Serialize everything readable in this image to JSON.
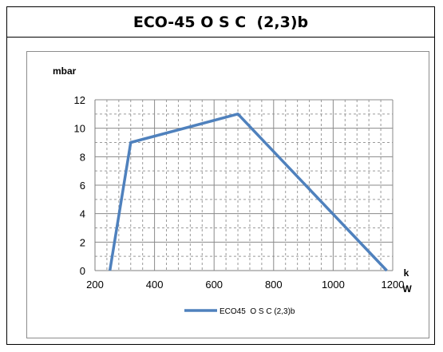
{
  "chart_data": {
    "type": "line",
    "title": "ECO-45 O S C  (2,3)b",
    "ylabel": "mbar",
    "xlabel_lines": [
      "k",
      "W"
    ],
    "xlim": [
      200,
      1200
    ],
    "ylim": [
      0,
      12
    ],
    "x_ticks": [
      200,
      400,
      600,
      800,
      1000,
      1200
    ],
    "y_ticks": [
      0,
      2,
      4,
      6,
      8,
      10,
      12
    ],
    "x_tick_labels": [
      "200",
      "400",
      "600",
      "800",
      "1000",
      "1200"
    ],
    "y_tick_labels": [
      "0",
      "2",
      "4",
      "6",
      "8",
      "10",
      "12"
    ],
    "grid": true,
    "legend_position": "bottom",
    "series": [
      {
        "name": "ECO45  O S C (2,3)b",
        "color": "#4f81bd",
        "x": [
          250,
          320,
          680,
          1180
        ],
        "y": [
          0,
          9,
          11,
          0
        ]
      }
    ]
  }
}
